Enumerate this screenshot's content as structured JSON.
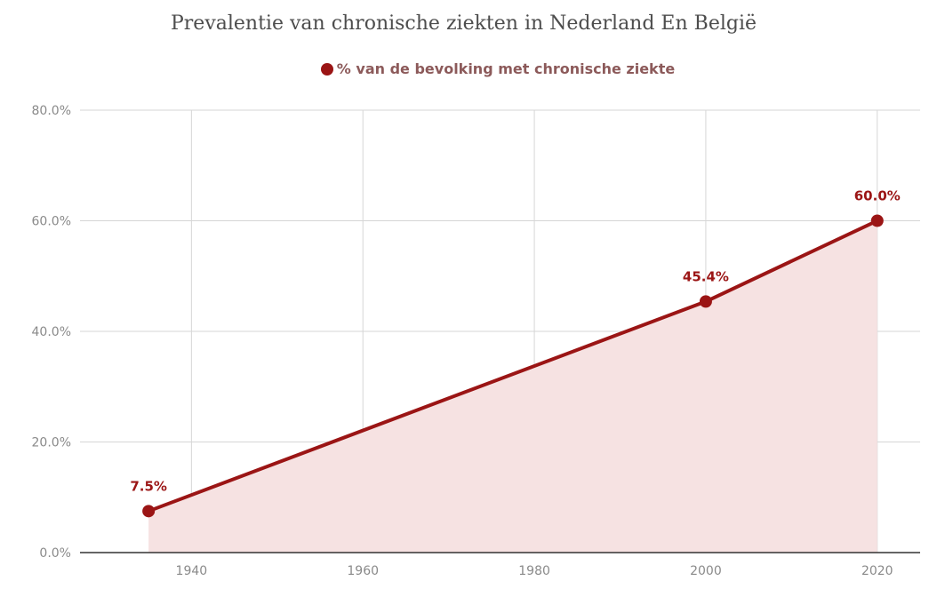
{
  "chart_data": {
    "type": "area",
    "title": "Prevalentie van chronische ziekten in Nederland En België",
    "legend_position": "top-center",
    "grid": true,
    "xlim": [
      1927,
      2025
    ],
    "ylim": [
      0,
      80
    ],
    "x_ticks": [
      "1940",
      "1960",
      "1980",
      "2000",
      "2020"
    ],
    "y_ticks": [
      "0.0%",
      "20.0%",
      "40.0%",
      "60.0%",
      "80.0%"
    ],
    "series": [
      {
        "name": "% van de bevolking met chronische ziekte",
        "color": "#9b1515",
        "fill_color": "#f6e2e2",
        "points": [
          {
            "x": 1935,
            "y": 7.5,
            "label": "7.5%"
          },
          {
            "x": 2000,
            "y": 45.4,
            "label": "45.4%"
          },
          {
            "x": 2020,
            "y": 60.0,
            "label": "60.0%"
          }
        ]
      }
    ]
  }
}
